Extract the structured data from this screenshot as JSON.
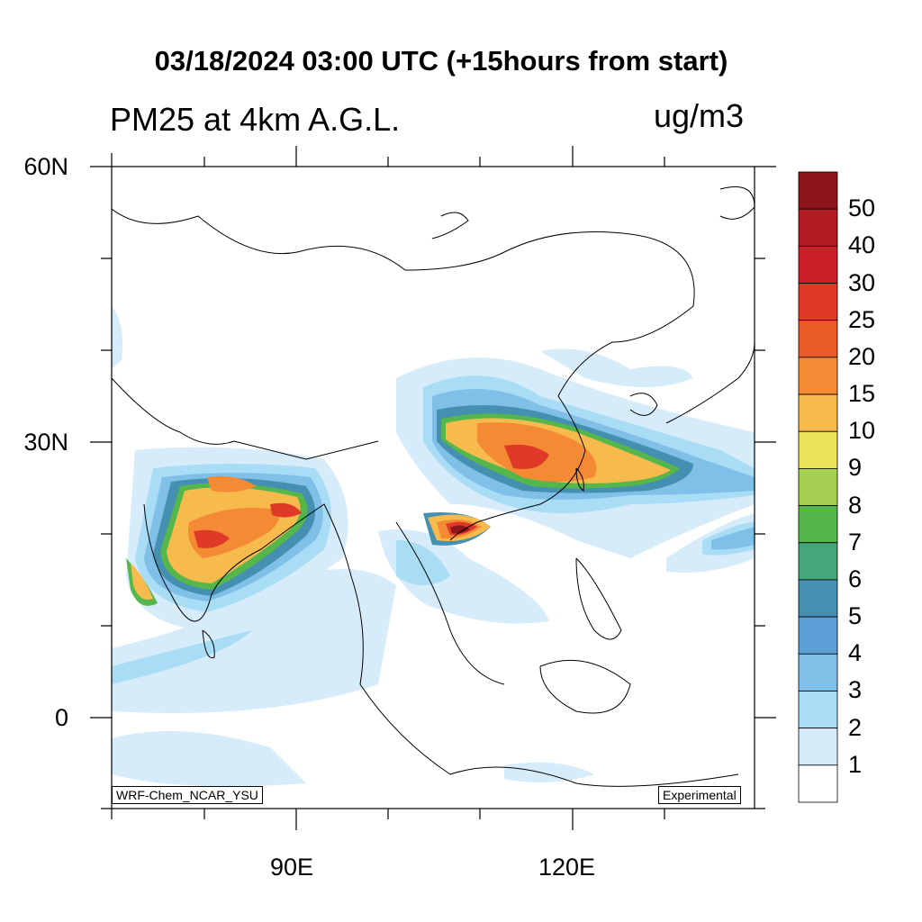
{
  "title": "03/18/2024 03:00 UTC (+15hours from start)",
  "subtitle": "PM25 at 4km A.G.L.",
  "units": "ug/m3",
  "axes": {
    "lat_labels": [
      "60N",
      "30N",
      "0"
    ],
    "lon_labels": [
      "90E",
      "120E"
    ]
  },
  "footer": {
    "model_label": "WRF-Chem_NCAR_YSU",
    "status_label": "Experimental"
  },
  "colorbar": {
    "labels": [
      "50",
      "40",
      "30",
      "25",
      "20",
      "15",
      "10",
      "9",
      "8",
      "7",
      "6",
      "5",
      "4",
      "3",
      "2",
      "1"
    ],
    "colors": [
      "#8e161a",
      "#b11c23",
      "#cc1f2a",
      "#de3a27",
      "#ea5b2a",
      "#f58a35",
      "#f7bb4d",
      "#ece35a",
      "#a6d052",
      "#55b74b",
      "#46a67a",
      "#4590b0",
      "#5b9fd6",
      "#80c0e8",
      "#a9dcf5",
      "#d6ecfa",
      "#ffffff"
    ]
  }
}
